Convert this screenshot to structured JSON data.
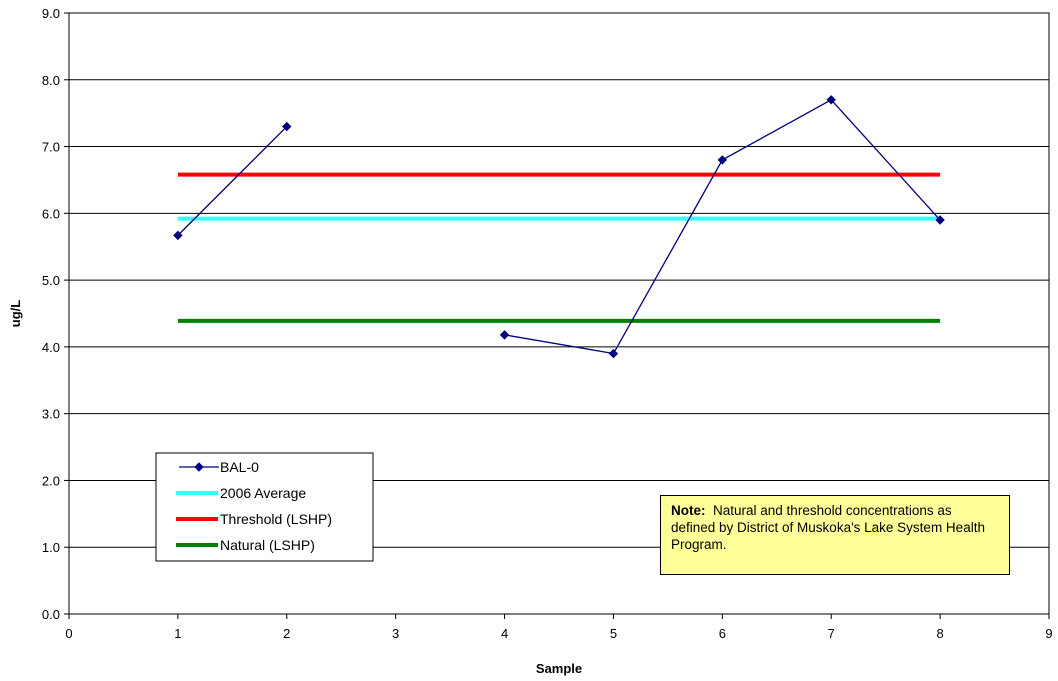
{
  "chart_data": {
    "type": "line",
    "xlabel": "Sample",
    "ylabel": "ug/L",
    "xlim": [
      0,
      9
    ],
    "ylim": [
      0,
      9
    ],
    "xticks": [
      "0",
      "1",
      "2",
      "3",
      "4",
      "5",
      "6",
      "7",
      "8",
      "9"
    ],
    "yticks": [
      "0.0",
      "1.0",
      "2.0",
      "3.0",
      "4.0",
      "5.0",
      "6.0",
      "7.0",
      "8.0",
      "9.0"
    ],
    "grid": "horizontal",
    "legend_position": "bottom-left",
    "series": [
      {
        "name": "BAL-0",
        "color": "#000080",
        "marker": "diamond",
        "points": [
          [
            1,
            5.67
          ],
          [
            2,
            7.3
          ],
          [
            4,
            4.18
          ],
          [
            5,
            3.9
          ],
          [
            6,
            6.8
          ],
          [
            7,
            7.7
          ],
          [
            8,
            5.9
          ]
        ],
        "segments": [
          [
            0,
            1
          ],
          [
            2,
            6
          ]
        ]
      },
      {
        "name": "2006 Average",
        "color": "#33ffff",
        "points": [
          [
            1,
            5.92
          ],
          [
            8,
            5.92
          ]
        ]
      },
      {
        "name": "Threshold (LSHP)",
        "color": "#ff0000",
        "points": [
          [
            1,
            6.58
          ],
          [
            8,
            6.58
          ]
        ]
      },
      {
        "name": "Natural (LSHP)",
        "color": "#008000",
        "points": [
          [
            1,
            4.39
          ],
          [
            8,
            4.39
          ]
        ]
      }
    ]
  },
  "note": {
    "label": "Note:",
    "text": "Natural and threshold concentrations as defined by District of Muskoka's Lake System Health Program."
  }
}
